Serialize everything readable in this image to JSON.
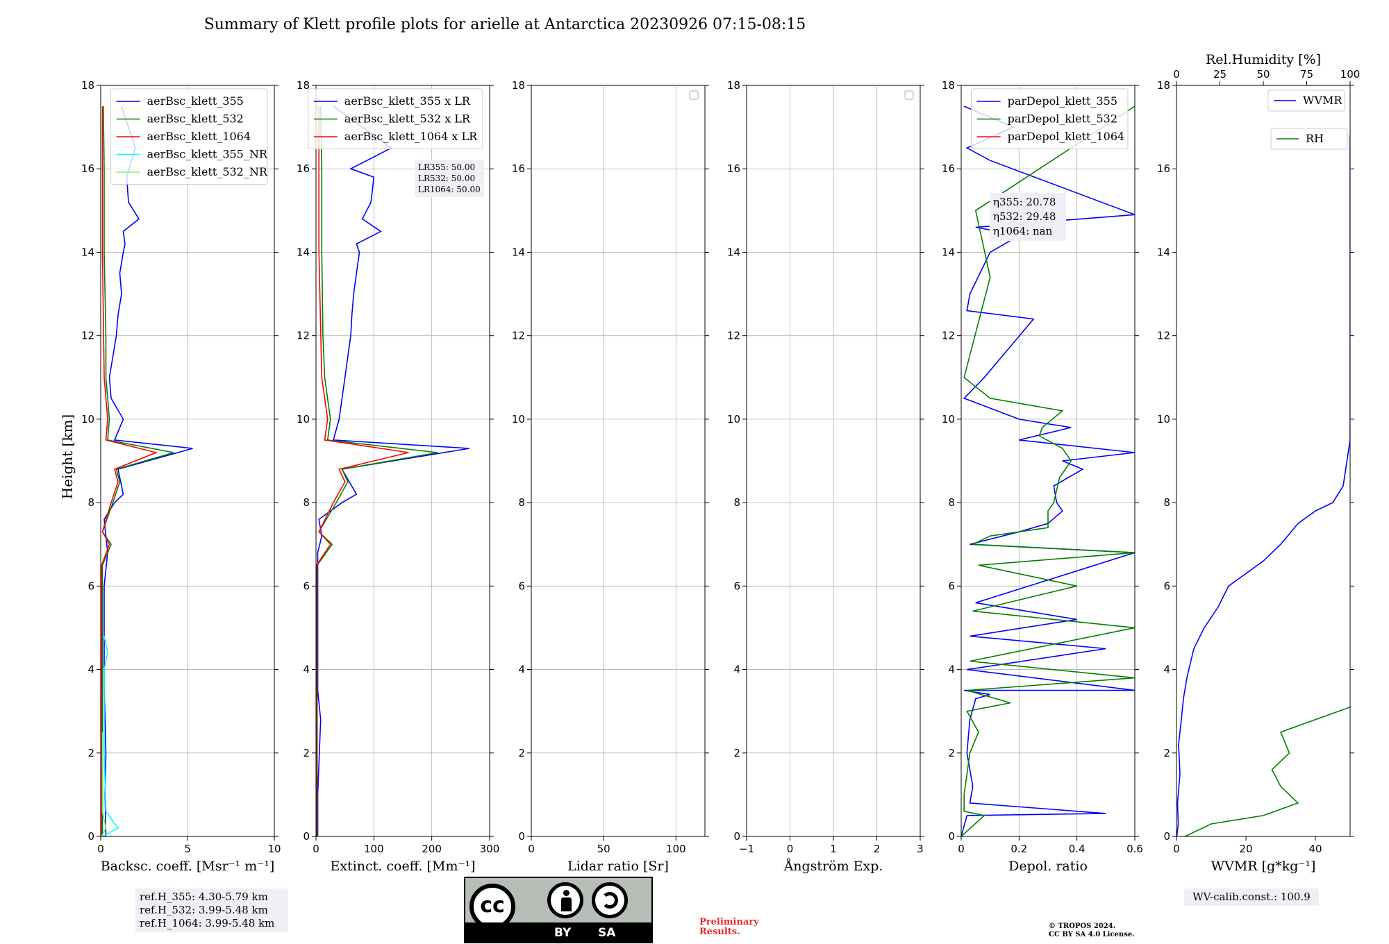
{
  "figure": {
    "title": "Summary of Klett profile plots for arielle at Antarctica 20230926 07:15-08:15",
    "shared_ylabel": "Height [km]"
  },
  "chart_data": [
    {
      "type": "line",
      "id": "backscatter",
      "xlabel": "Backsc. coeff. [Msr⁻¹ m⁻¹]",
      "ylabel": "Height [km]",
      "xlim": [
        0,
        10
      ],
      "ylim": [
        0,
        18
      ],
      "xticks": [
        0,
        5,
        10
      ],
      "yticks": [
        0,
        2,
        4,
        6,
        8,
        10,
        12,
        14,
        16,
        18
      ],
      "grid": true,
      "legend_position": "top-right",
      "series": [
        {
          "name": "aerBsc_klett_355",
          "color": "#0000ff",
          "x": [
            0.3,
            0.25,
            0.3,
            0.25,
            0.2,
            0.2,
            0.2,
            0.4,
            0.2,
            0.8,
            1.3,
            1.0,
            5.3,
            0.8,
            1.3,
            0.6,
            0.5,
            0.7,
            0.9,
            1.0,
            1.2,
            1.1,
            1.3,
            1.4,
            1.3,
            2.2,
            1.6,
            1.5,
            2.0,
            1.2
          ],
          "y": [
            0.0,
            1.0,
            2.0,
            2.8,
            3.5,
            5.0,
            6.0,
            6.8,
            7.6,
            8.0,
            8.2,
            8.8,
            9.3,
            9.5,
            10.0,
            10.5,
            11.0,
            11.5,
            12.0,
            12.5,
            13.0,
            13.5,
            14.0,
            14.2,
            14.5,
            14.8,
            15.2,
            15.8,
            16.5,
            17.5
          ]
        },
        {
          "name": "aerBsc_klett_532",
          "color": "#008000",
          "x": [
            0.1,
            0.1,
            0.1,
            0.1,
            0.6,
            0.1,
            0.7,
            1.1,
            0.9,
            4.2,
            0.4,
            0.5,
            0.3,
            0.3,
            0.2,
            0.2,
            0.15
          ],
          "y": [
            0.0,
            2.0,
            4.0,
            6.5,
            7.0,
            7.3,
            8.0,
            8.5,
            8.8,
            9.2,
            9.5,
            10.0,
            11.0,
            12.0,
            14.0,
            16.0,
            17.5
          ]
        },
        {
          "name": "aerBsc_klett_1064",
          "color": "#ff0000",
          "x": [
            0.05,
            0.05,
            0.05,
            0.5,
            0.1,
            0.6,
            1.0,
            0.8,
            3.2,
            0.3,
            0.4,
            0.2,
            0.1,
            0.1
          ],
          "y": [
            0.0,
            3.0,
            6.5,
            7.0,
            7.3,
            8.0,
            8.5,
            8.8,
            9.2,
            9.5,
            10.0,
            11.0,
            14.0,
            17.5
          ]
        },
        {
          "name": "aerBsc_klett_355_NR",
          "color": "#00ffff",
          "x": [
            0.1,
            1.0,
            0.3,
            0.2,
            0.2,
            0.4,
            0.2
          ],
          "y": [
            0.0,
            0.2,
            0.6,
            2.0,
            4.0,
            4.4,
            4.8
          ]
        },
        {
          "name": "aerBsc_klett_532_NR",
          "color": "#66ff66",
          "x": [
            0.05,
            0.3,
            0.1,
            0.1
          ],
          "y": [
            0.0,
            0.2,
            0.6,
            2.5
          ]
        }
      ],
      "annotations": [
        "ref.H_355: 4.30-5.79 km",
        "ref.H_532: 3.99-5.48 km",
        "ref.H_1064: 3.99-5.48 km"
      ]
    },
    {
      "type": "line",
      "id": "extinction",
      "xlabel": "Extinct. coeff. [Mm⁻¹]",
      "xlim": [
        0,
        300
      ],
      "ylim": [
        0,
        18
      ],
      "xticks": [
        0,
        100,
        200,
        300
      ],
      "yticks": [
        0,
        2,
        4,
        6,
        8,
        10,
        12,
        14,
        16,
        18
      ],
      "grid": true,
      "legend_position": "top-right",
      "series": [
        {
          "name": "aerBsc_klett_355 x LR",
          "color": "#0000ff",
          "x": [
            3,
            3,
            8,
            3,
            3,
            3,
            3,
            10,
            5,
            45,
            70,
            45,
            265,
            30,
            40,
            45,
            50,
            55,
            60,
            62,
            65,
            70,
            75,
            70,
            112,
            80,
            95,
            100,
            60,
            130,
            30
          ],
          "y": [
            0.0,
            1.0,
            2.8,
            3.5,
            5.0,
            6.0,
            6.8,
            7.2,
            7.6,
            8.0,
            8.2,
            8.8,
            9.3,
            9.5,
            10.0,
            10.5,
            11.0,
            11.5,
            12.0,
            12.5,
            13.0,
            13.5,
            14.0,
            14.2,
            14.5,
            14.8,
            15.2,
            15.8,
            16.0,
            16.5,
            17.5
          ]
        },
        {
          "name": "aerBsc_klett_532 x LR",
          "color": "#008000",
          "x": [
            2,
            2,
            2,
            2,
            28,
            5,
            35,
            55,
            45,
            210,
            20,
            25,
            15,
            12,
            10,
            10,
            8
          ],
          "y": [
            0.0,
            2.0,
            4.0,
            6.5,
            7.0,
            7.3,
            8.0,
            8.5,
            8.8,
            9.2,
            9.5,
            10.0,
            11.0,
            12.0,
            14.0,
            16.0,
            17.5
          ]
        },
        {
          "name": "aerBsc_klett_1064 x LR",
          "color": "#ff0000",
          "x": [
            1,
            1,
            1,
            25,
            5,
            30,
            50,
            40,
            160,
            15,
            20,
            10,
            5,
            5
          ],
          "y": [
            0.0,
            3.0,
            6.5,
            7.0,
            7.3,
            8.0,
            8.5,
            8.8,
            9.2,
            9.5,
            10.0,
            11.0,
            14.0,
            17.5
          ]
        }
      ],
      "annotations": [
        "LR355: 50.00",
        "LR532: 50.00",
        "LR1064: 50.00"
      ]
    },
    {
      "type": "line",
      "id": "lidar_ratio",
      "xlabel": "Lidar ratio [Sr]",
      "xlim": [
        0,
        120
      ],
      "ylim": [
        0,
        18
      ],
      "xticks": [
        0,
        50,
        100
      ],
      "yticks": [
        0,
        2,
        4,
        6,
        8,
        10,
        12,
        14,
        16,
        18
      ],
      "grid": true,
      "legend_position": "top-right",
      "series": []
    },
    {
      "type": "line",
      "id": "angstrom",
      "xlabel": "Ångström Exp.",
      "xlim": [
        -1,
        3
      ],
      "ylim": [
        0,
        18
      ],
      "xticks": [
        -1,
        0,
        1,
        2,
        3
      ],
      "yticks": [
        0,
        2,
        4,
        6,
        8,
        10,
        12,
        14,
        16,
        18
      ],
      "grid": true,
      "legend_position": "top-right",
      "series": []
    },
    {
      "type": "line",
      "id": "depol",
      "xlabel": "Depol. ratio",
      "xlim": [
        0,
        0.6
      ],
      "ylim": [
        0,
        18
      ],
      "xticks": [
        0.0,
        0.2,
        0.4,
        0.6
      ],
      "yticks": [
        0,
        2,
        4,
        6,
        8,
        10,
        12,
        14,
        16,
        18
      ],
      "grid": true,
      "legend_position": "top-right",
      "series": [
        {
          "name": "parDepol_klett_355",
          "color": "#0000ff",
          "x": [
            0.0,
            0.02,
            0.5,
            0.03,
            0.04,
            0.02,
            0.03,
            0.05,
            0.1,
            0.01,
            0.6,
            0.02,
            0.5,
            0.03,
            0.4,
            0.05,
            0.6,
            0.03,
            0.2,
            0.3,
            0.35,
            0.33,
            0.32,
            0.42,
            0.35,
            0.6,
            0.2,
            0.38,
            0.2,
            0.01,
            0.08,
            0.25,
            0.02,
            0.03,
            0.1,
            0.2,
            0.05,
            0.6,
            0.1,
            0.02,
            0.18,
            0.01
          ],
          "y": [
            0.0,
            0.5,
            0.55,
            0.8,
            1.2,
            2.0,
            2.8,
            3.3,
            3.4,
            3.5,
            3.5,
            4.0,
            4.5,
            4.8,
            5.2,
            5.6,
            6.8,
            7.0,
            7.3,
            7.5,
            7.8,
            8.0,
            8.4,
            8.8,
            9.0,
            9.2,
            9.5,
            9.8,
            10.0,
            10.5,
            11.0,
            12.4,
            12.6,
            13.0,
            14.0,
            14.4,
            14.6,
            14.9,
            16.2,
            16.5,
            17.0,
            17.5
          ]
        },
        {
          "name": "parDepol_klett_532",
          "color": "#008000",
          "x": [
            0.0,
            0.08,
            0.01,
            0.01,
            0.03,
            0.06,
            0.02,
            0.17,
            0.02,
            0.6,
            0.03,
            0.6,
            0.04,
            0.4,
            0.06,
            0.6,
            0.04,
            0.1,
            0.3,
            0.3,
            0.32,
            0.34,
            0.38,
            0.35,
            0.27,
            0.28,
            0.35,
            0.1,
            0.01,
            0.1,
            0.05,
            0.6
          ],
          "y": [
            0.0,
            0.5,
            0.6,
            1.0,
            2.0,
            2.5,
            3.0,
            3.2,
            3.5,
            3.8,
            4.2,
            5.0,
            5.4,
            6.0,
            6.5,
            6.8,
            7.0,
            7.2,
            7.4,
            7.8,
            8.0,
            8.6,
            9.0,
            9.3,
            9.6,
            9.8,
            10.2,
            10.5,
            11.0,
            13.4,
            15.0,
            17.5
          ]
        },
        {
          "name": "parDepol_klett_1064",
          "color": "#ff0000",
          "x": [],
          "y": []
        }
      ],
      "annotations": [
        "η355: 20.78",
        "η532: 29.48",
        "η1064: nan"
      ]
    },
    {
      "type": "line",
      "id": "wvmr",
      "xlabel": "WVMR [g*kg⁻¹]",
      "xlabel_top": "Rel.Humidity [%]",
      "xlim": [
        0,
        50
      ],
      "xlim_top": [
        0,
        100
      ],
      "ylim": [
        0,
        18
      ],
      "xticks": [
        0,
        20,
        40
      ],
      "xticks_top": [
        0,
        25,
        50,
        75,
        100
      ],
      "yticks": [
        0,
        2,
        4,
        6,
        8,
        10,
        12,
        14,
        16,
        18
      ],
      "grid": false,
      "legend_position": "top-right",
      "series": [
        {
          "name": "WVMR",
          "color": "#0000ff",
          "x": [
            0.1,
            0.5,
            0.3,
            1.0,
            0.6,
            1.4,
            2.0,
            3.0,
            5.0,
            8.0,
            12.0,
            15.0,
            20.0,
            25.0,
            30.0,
            35.0,
            40.0,
            45.0,
            48.0,
            50.0,
            50.0,
            50.0,
            50.0,
            50.0
          ],
          "y": [
            0.0,
            0.3,
            0.8,
            1.5,
            2.2,
            2.8,
            3.3,
            3.8,
            4.5,
            5.0,
            5.5,
            6.0,
            6.3,
            6.6,
            7.0,
            7.5,
            7.8,
            8.0,
            8.4,
            9.5,
            9.9,
            11.3,
            11.8,
            16.8
          ]
        },
        {
          "name": "RH",
          "color": "#008000",
          "x_rh": [
            5,
            20,
            50,
            70,
            60,
            55,
            65,
            60,
            100
          ],
          "y": [
            0.0,
            0.3,
            0.5,
            0.8,
            1.2,
            1.6,
            2.0,
            2.5,
            3.1
          ]
        }
      ],
      "annotations": [
        "WV-calib.const.: 100.9"
      ]
    }
  ],
  "license": {
    "badge_cc": "cc",
    "badge_by": "BY",
    "badge_sa": "SA",
    "preliminary_line1": "Preliminary",
    "preliminary_line2": "Results.",
    "copyright_line1": "© TROPOS 2024.",
    "copyright_line2": "CC BY SA 4.0 License."
  }
}
